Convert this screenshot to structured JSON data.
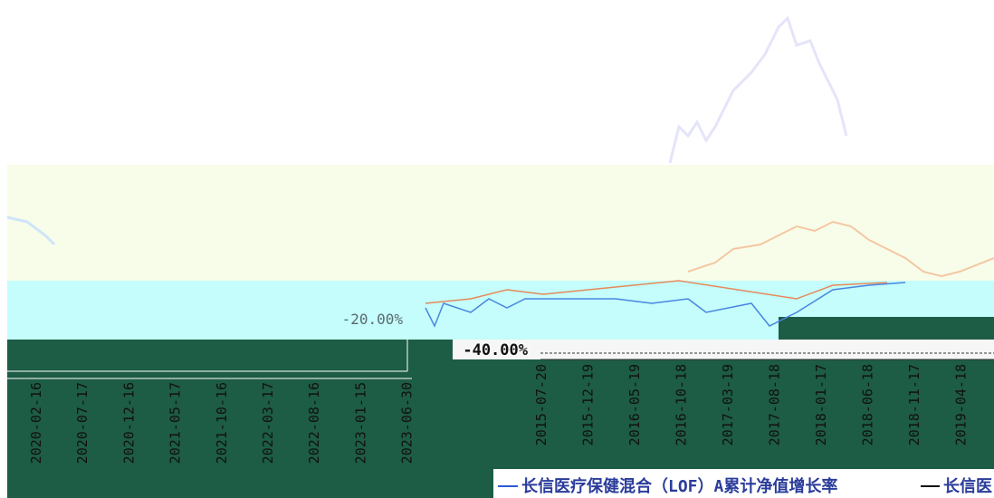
{
  "axis_labels": {
    "left_panel": "-20.00%",
    "right_panel": "-40.00%"
  },
  "left_dates": [
    "2020-02-16",
    "2020-07-17",
    "2020-12-16",
    "2021-05-17",
    "2021-10-16",
    "2022-03-17",
    "2022-08-16",
    "2023-01-15",
    "2023-06-30"
  ],
  "right_dates": [
    "2015-07-20",
    "2015-12-19",
    "2016-05-19",
    "2016-10-18",
    "2017-03-19",
    "2017-08-18",
    "2018-01-17",
    "2018-06-18",
    "2018-11-17",
    "2019-04-18"
  ],
  "legend": {
    "entries": [
      {
        "label": "长信医疗保健混合（LOF）A累计净值增长率"
      },
      {
        "label": "长信医"
      }
    ]
  }
}
